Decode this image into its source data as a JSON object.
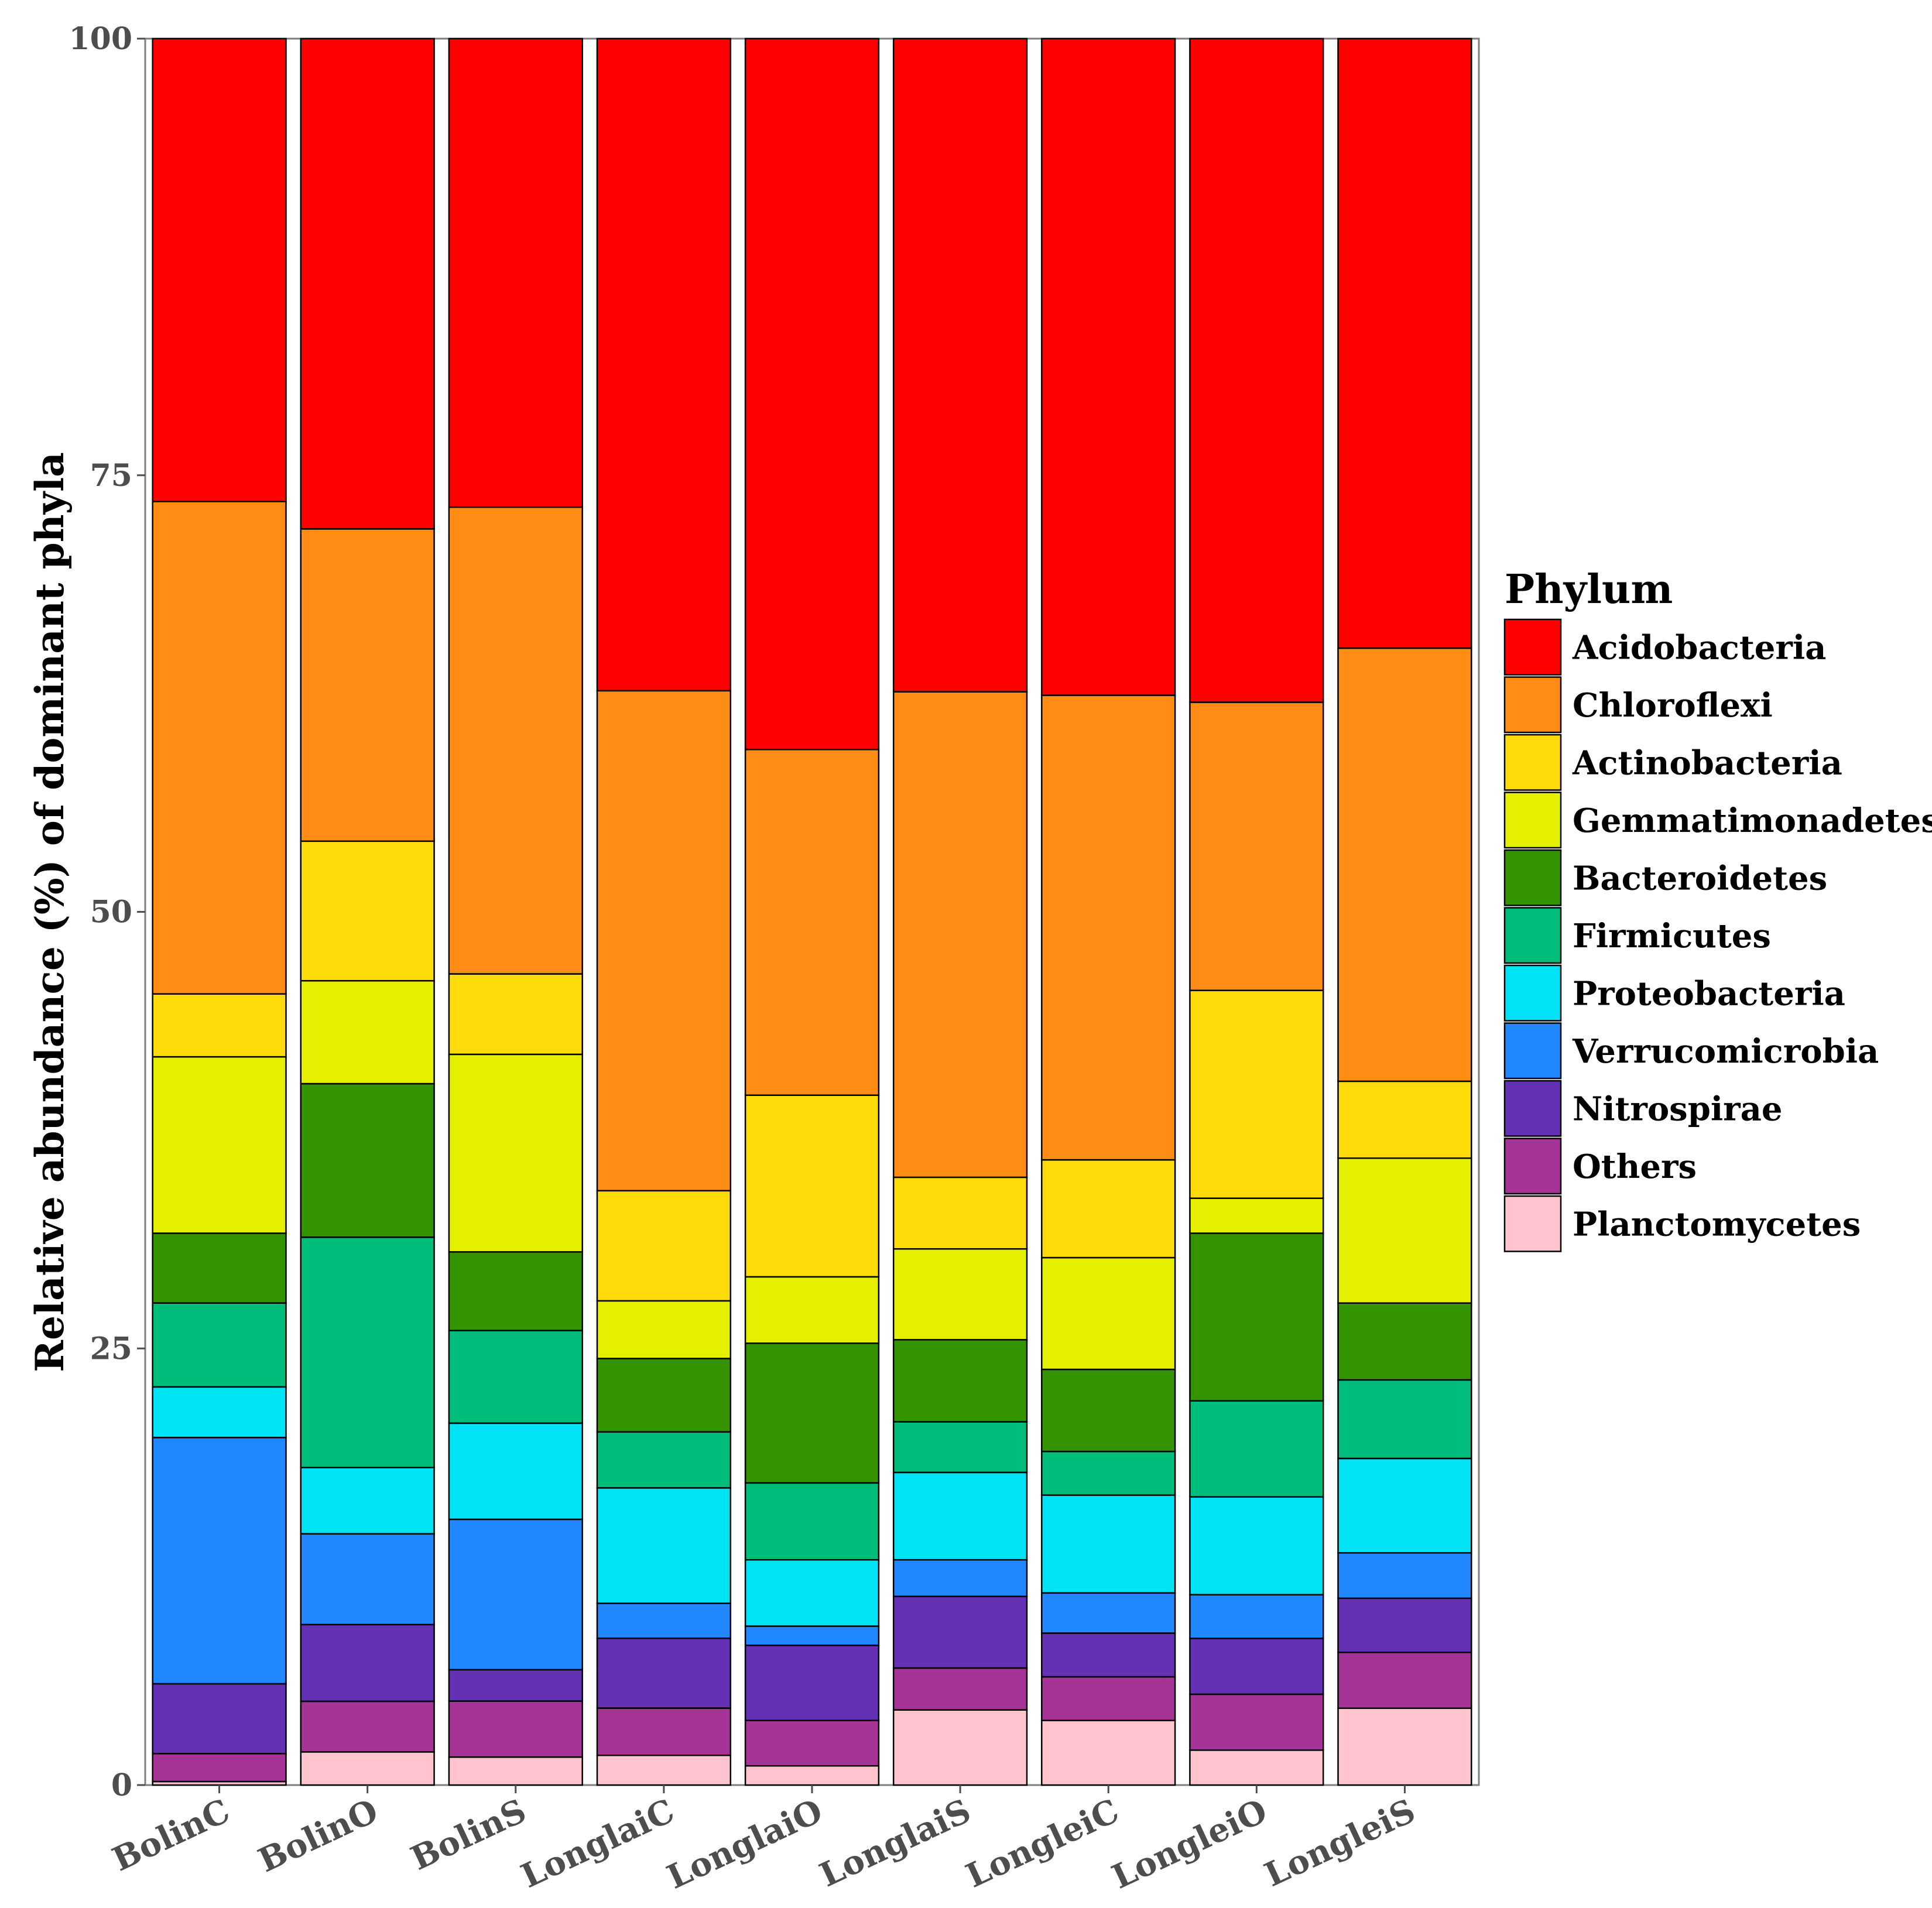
{
  "chart_data": {
    "type": "bar",
    "stacked": true,
    "title": "",
    "xlabel": "",
    "ylabel": "Relative abundance (%) of dominant phyla",
    "ylim": [
      0,
      100
    ],
    "yticks": [
      0,
      25,
      50,
      75,
      100
    ],
    "categories": [
      "BolinC",
      "BolinO",
      "BolinS",
      "LonglaiC",
      "LonglaiO",
      "LonglaiS",
      "LongleiC",
      "LongleiO",
      "LongleiS"
    ],
    "legend_title": "Phylum",
    "legend_position": "right",
    "stack_order_bottom_to_top": [
      "Planctomycetes",
      "Others",
      "Nitrospirae",
      "Verrucomicrobia",
      "Proteobacteria",
      "Firmicutes",
      "Bacteroidetes",
      "Gemmatimonadetes",
      "Actinobacteria",
      "Chloroflexi",
      "Acidobacteria"
    ],
    "series": [
      {
        "name": "Acidobacteria",
        "color": "#FF0000",
        "values": [
          26.5,
          28.1,
          26.8,
          37.3,
          40.7,
          37.4,
          37.6,
          38.0,
          34.9
        ]
      },
      {
        "name": "Chloroflexi",
        "color": "#FF8C14",
        "values": [
          28.2,
          17.9,
          26.7,
          28.6,
          19.8,
          27.8,
          26.6,
          16.5,
          24.8
        ]
      },
      {
        "name": "Actinobacteria",
        "color": "#FFDB0A",
        "values": [
          3.6,
          8.0,
          4.6,
          6.3,
          10.4,
          4.1,
          5.6,
          11.9,
          4.4
        ]
      },
      {
        "name": "Gemmatimonadetes",
        "color": "#E4F000",
        "values": [
          10.1,
          5.9,
          11.3,
          3.3,
          3.8,
          5.2,
          6.4,
          2.0,
          8.3
        ]
      },
      {
        "name": "Bacteroidetes",
        "color": "#339400",
        "values": [
          4.0,
          8.8,
          4.5,
          4.2,
          8.0,
          4.7,
          4.7,
          9.6,
          4.4
        ]
      },
      {
        "name": "Firmicutes",
        "color": "#00BD7B",
        "values": [
          4.8,
          13.2,
          5.3,
          3.2,
          4.4,
          2.9,
          2.5,
          5.5,
          4.5
        ]
      },
      {
        "name": "Proteobacteria",
        "color": "#00E3F5",
        "values": [
          2.9,
          3.8,
          5.5,
          6.6,
          3.8,
          5.0,
          5.6,
          5.6,
          5.4
        ]
      },
      {
        "name": "Verrucomicrobia",
        "color": "#2288FF",
        "values": [
          14.1,
          5.2,
          8.6,
          2.0,
          1.1,
          2.1,
          2.3,
          2.5,
          2.6
        ]
      },
      {
        "name": "Nitrospirae",
        "color": "#6430B4",
        "values": [
          4.0,
          4.4,
          1.8,
          4.0,
          4.3,
          4.1,
          2.5,
          3.2,
          3.1
        ]
      },
      {
        "name": "Others",
        "color": "#A63496",
        "values": [
          1.6,
          2.9,
          3.2,
          2.7,
          2.6,
          2.4,
          2.5,
          3.2,
          3.2
        ]
      },
      {
        "name": "Planctomycetes",
        "color": "#FFC4CE",
        "values": [
          0.2,
          1.9,
          1.6,
          1.7,
          1.1,
          4.3,
          3.7,
          2.0,
          4.4
        ]
      }
    ]
  }
}
